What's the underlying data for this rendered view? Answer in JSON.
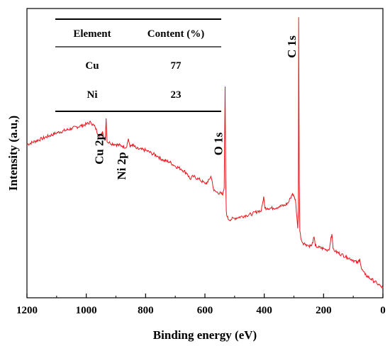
{
  "chart_data": {
    "type": "line",
    "title": "",
    "xlabel": "Binding energy (eV)",
    "ylabel": "Intensity (a.u,)",
    "xlim": [
      1200,
      0
    ],
    "x_reversed": true,
    "x_ticks": [
      1200,
      1000,
      800,
      600,
      400,
      200,
      0
    ],
    "y_ticks_shown": false,
    "grid": false,
    "color": "#e8141b",
    "series": [
      {
        "x": [
          1200,
          1150,
          1100,
          1050,
          1000,
          985,
          970,
          960,
          950,
          945,
          940,
          936,
          933,
          930,
          920,
          900,
          880,
          865,
          858,
          852,
          845,
          830,
          800,
          780,
          760,
          740,
          720,
          700,
          680,
          660,
          650,
          640,
          620,
          600,
          590,
          580,
          575,
          570,
          560,
          545,
          540,
          535,
          532,
          530,
          528,
          525,
          520,
          500,
          480,
          460,
          440,
          420,
          410,
          405,
          402,
          398,
          390,
          370,
          350,
          330,
          318,
          312,
          305,
          300,
          295,
          290,
          287,
          285,
          284,
          283,
          282,
          280,
          275,
          270,
          260,
          250,
          240,
          232,
          228,
          220,
          200,
          190,
          180,
          175,
          172,
          168,
          160,
          140,
          120,
          100,
          85,
          78,
          72,
          60,
          40,
          20,
          8,
          0
        ],
        "y": [
          0.53,
          0.55,
          0.57,
          0.585,
          0.6,
          0.607,
          0.59,
          0.565,
          0.56,
          0.575,
          0.55,
          0.545,
          0.62,
          0.54,
          0.535,
          0.53,
          0.525,
          0.52,
          0.55,
          0.52,
          0.53,
          0.515,
          0.51,
          0.5,
          0.49,
          0.475,
          0.47,
          0.455,
          0.445,
          0.43,
          0.41,
          0.42,
          0.41,
          0.395,
          0.4,
          0.42,
          0.4,
          0.37,
          0.365,
          0.36,
          0.355,
          0.38,
          0.73,
          0.42,
          0.3,
          0.28,
          0.27,
          0.275,
          0.28,
          0.285,
          0.29,
          0.3,
          0.3,
          0.33,
          0.35,
          0.31,
          0.31,
          0.31,
          0.315,
          0.32,
          0.33,
          0.345,
          0.36,
          0.35,
          0.34,
          0.28,
          0.24,
          0.3,
          0.97,
          0.7,
          0.4,
          0.23,
          0.2,
          0.19,
          0.185,
          0.18,
          0.18,
          0.21,
          0.18,
          0.175,
          0.17,
          0.165,
          0.17,
          0.21,
          0.22,
          0.17,
          0.16,
          0.15,
          0.14,
          0.13,
          0.12,
          0.135,
          0.1,
          0.08,
          0.065,
          0.05,
          0.04,
          0.035
        ]
      }
    ],
    "annotations": [
      {
        "text": "Cu 2p",
        "x": 933
      },
      {
        "text": "Ni 2p",
        "x": 858
      },
      {
        "text": "O 1s",
        "x": 532
      },
      {
        "text": "C 1s",
        "x": 284
      }
    ]
  },
  "table": {
    "headers": [
      "Element",
      "Content (%)"
    ],
    "rows": [
      [
        "Cu",
        "77"
      ],
      [
        "Ni",
        "23"
      ]
    ]
  }
}
